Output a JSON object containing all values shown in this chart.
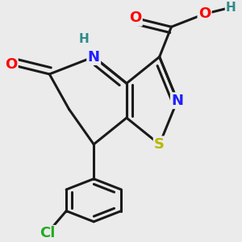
{
  "background_color": "#ebebeb",
  "bond_color": "#1a1a1a",
  "bond_width": 2.2,
  "atom_colors": {
    "N": "#2020ff",
    "O": "#ff0000",
    "S": "#b8b800",
    "Cl": "#22aa22",
    "H": "#2e8b8b",
    "C": "#1a1a1a"
  },
  "font_size": 13,
  "fig_size": [
    3.0,
    3.0
  ],
  "dpi": 100
}
